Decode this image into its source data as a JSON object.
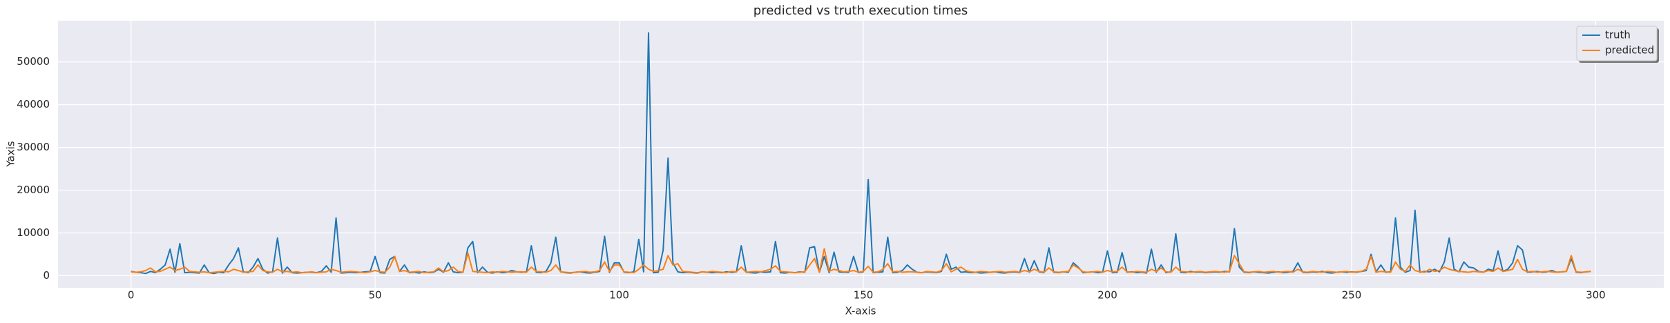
{
  "chart_data": {
    "type": "line",
    "title": "predicted vs truth execution times",
    "x_label": "X-axis",
    "y_label": "Yaxis",
    "grid": true,
    "legend": "upper right",
    "xlim": [
      -14.95,
      313.95
    ],
    "ylim": [
      -2840,
      59640
    ],
    "xticks": [
      0,
      50,
      100,
      150,
      200,
      250,
      300
    ],
    "yticks": [
      0,
      10000,
      20000,
      30000,
      40000,
      50000
    ],
    "x": [
      0,
      1,
      2,
      3,
      4,
      5,
      6,
      7,
      8,
      9,
      10,
      11,
      12,
      13,
      14,
      15,
      16,
      17,
      18,
      19,
      20,
      21,
      22,
      23,
      24,
      25,
      26,
      27,
      28,
      29,
      30,
      31,
      32,
      33,
      34,
      35,
      36,
      37,
      38,
      39,
      40,
      41,
      42,
      43,
      44,
      45,
      46,
      47,
      48,
      49,
      50,
      51,
      52,
      53,
      54,
      55,
      56,
      57,
      58,
      59,
      60,
      61,
      62,
      63,
      64,
      65,
      66,
      67,
      68,
      69,
      70,
      71,
      72,
      73,
      74,
      75,
      76,
      77,
      78,
      79,
      80,
      81,
      82,
      83,
      84,
      85,
      86,
      87,
      88,
      89,
      90,
      91,
      92,
      93,
      94,
      95,
      96,
      97,
      98,
      99,
      100,
      101,
      102,
      103,
      104,
      105,
      106,
      107,
      108,
      109,
      110,
      111,
      112,
      113,
      114,
      115,
      116,
      117,
      118,
      119,
      120,
      121,
      122,
      123,
      124,
      125,
      126,
      127,
      128,
      129,
      130,
      131,
      132,
      133,
      134,
      135,
      136,
      137,
      138,
      139,
      140,
      141,
      142,
      143,
      144,
      145,
      146,
      147,
      148,
      149,
      150,
      151,
      152,
      153,
      154,
      155,
      156,
      157,
      158,
      159,
      160,
      161,
      162,
      163,
      164,
      165,
      166,
      167,
      168,
      169,
      170,
      171,
      172,
      173,
      174,
      175,
      176,
      177,
      178,
      179,
      180,
      181,
      182,
      183,
      184,
      185,
      186,
      187,
      188,
      189,
      190,
      191,
      192,
      193,
      194,
      195,
      196,
      197,
      198,
      199,
      200,
      201,
      202,
      203,
      204,
      205,
      206,
      207,
      208,
      209,
      210,
      211,
      212,
      213,
      214,
      215,
      216,
      217,
      218,
      219,
      220,
      221,
      222,
      223,
      224,
      225,
      226,
      227,
      228,
      229,
      230,
      231,
      232,
      233,
      234,
      235,
      236,
      237,
      238,
      239,
      240,
      241,
      242,
      243,
      244,
      245,
      246,
      247,
      248,
      249,
      250,
      251,
      252,
      253,
      254,
      255,
      256,
      257,
      258,
      259,
      260,
      261,
      262,
      263,
      264,
      265,
      266,
      267,
      268,
      269,
      270,
      271,
      272,
      273,
      274,
      275,
      276,
      277,
      278,
      279,
      280,
      281,
      282,
      283,
      284,
      285,
      286,
      287,
      288,
      289,
      290,
      291,
      292,
      293,
      294,
      295,
      296,
      297,
      298,
      299
    ],
    "series": [
      {
        "name": "truth",
        "color": "#1f77b4",
        "values": [
          1000,
          800,
          700,
          500,
          1000,
          700,
          1500,
          2500,
          6200,
          800,
          7500,
          700,
          800,
          700,
          600,
          2500,
          700,
          500,
          800,
          700,
          2500,
          4000,
          6500,
          900,
          700,
          2000,
          4000,
          1500,
          600,
          900,
          8800,
          600,
          2000,
          700,
          600,
          700,
          800,
          800,
          700,
          1000,
          2300,
          800,
          13500,
          600,
          700,
          800,
          700,
          800,
          900,
          1000,
          4500,
          700,
          600,
          3800,
          4500,
          1000,
          2500,
          700,
          800,
          600,
          900,
          700,
          800,
          1500,
          800,
          3000,
          900,
          700,
          800,
          6500,
          8000,
          700,
          2000,
          800,
          600,
          900,
          700,
          800,
          1200,
          900,
          800,
          900,
          7000,
          800,
          700,
          1000,
          3000,
          9000,
          900,
          700,
          600,
          800,
          900,
          700,
          600,
          800,
          1000,
          9200,
          800,
          3000,
          3000,
          800,
          700,
          900,
          8500,
          900,
          56800,
          700,
          800,
          6000,
          27500,
          3000,
          900,
          700,
          800,
          700,
          600,
          900,
          800,
          700,
          800,
          700,
          900,
          800,
          900,
          7000,
          800,
          700,
          600,
          900,
          800,
          900,
          8000,
          700,
          600,
          800,
          700,
          900,
          800,
          6500,
          6800,
          800,
          4500,
          700,
          5500,
          900,
          800,
          800,
          4500,
          700,
          900,
          22500,
          700,
          800,
          900,
          9000,
          700,
          800,
          1200,
          2500,
          1500,
          800,
          700,
          900,
          800,
          700,
          1000,
          5000,
          1500,
          2000,
          800,
          900,
          700,
          800,
          600,
          700,
          800,
          900,
          700,
          600,
          800,
          900,
          700,
          4000,
          800,
          3500,
          900,
          700,
          6500,
          800,
          700,
          900,
          800,
          3000,
          2000,
          700,
          800,
          900,
          700,
          800,
          5800,
          700,
          800,
          5400,
          800,
          900,
          700,
          800,
          600,
          6200,
          800,
          2500,
          700,
          900,
          9800,
          800,
          700,
          1000,
          800,
          900,
          700,
          800,
          900,
          800,
          1000,
          900,
          11000,
          2000,
          800,
          700,
          900,
          800,
          700,
          600,
          800,
          900,
          700,
          800,
          1000,
          3000,
          800,
          700,
          900,
          800,
          1000,
          700,
          600,
          800,
          900,
          800,
          900,
          800,
          1000,
          1200,
          5000,
          900,
          2500,
          800,
          900,
          13500,
          2000,
          800,
          1200,
          15300,
          800,
          1000,
          900,
          1500,
          900,
          3200,
          8800,
          1500,
          900,
          3200,
          2000,
          1800,
          1000,
          800,
          1500,
          1200,
          5800,
          1000,
          1500,
          3000,
          7000,
          6000,
          800,
          900,
          1000,
          800,
          900,
          1200,
          800,
          900,
          1000,
          4000,
          800,
          700,
          900,
          1000
        ]
      },
      {
        "name": "predicted",
        "color": "#ff7f0e",
        "values": [
          900,
          800,
          900,
          1200,
          1800,
          900,
          1000,
          1500,
          2000,
          1200,
          1500,
          2000,
          1000,
          900,
          800,
          900,
          700,
          800,
          900,
          1000,
          900,
          1500,
          1200,
          800,
          900,
          1000,
          2500,
          1200,
          900,
          800,
          1500,
          900,
          1000,
          800,
          900,
          700,
          800,
          900,
          700,
          800,
          900,
          1500,
          1200,
          800,
          900,
          1000,
          900,
          800,
          700,
          900,
          1200,
          900,
          800,
          2000,
          4500,
          1000,
          1200,
          800,
          900,
          1000,
          700,
          800,
          900,
          1800,
          900,
          1200,
          2000,
          1000,
          800,
          5300,
          1000,
          900,
          800,
          700,
          900,
          800,
          1000,
          900,
          800,
          900,
          900,
          800,
          2000,
          1000,
          900,
          800,
          1200,
          2500,
          900,
          800,
          700,
          800,
          900,
          1000,
          800,
          900,
          1200,
          3200,
          1000,
          2500,
          2500,
          900,
          800,
          700,
          1500,
          2500,
          1500,
          1000,
          1200,
          1500,
          4700,
          2500,
          2800,
          1000,
          900,
          800,
          700,
          900,
          800,
          1000,
          900,
          800,
          700,
          1000,
          900,
          2000,
          800,
          900,
          1000,
          900,
          1200,
          1500,
          2300,
          1000,
          900,
          800,
          700,
          800,
          900,
          2500,
          4000,
          800,
          6300,
          1000,
          1500,
          1200,
          900,
          1000,
          1200,
          800,
          1000,
          2200,
          800,
          900,
          1500,
          2800,
          900,
          1000,
          800,
          900,
          900,
          800,
          700,
          1000,
          900,
          800,
          1200,
          2800,
          900,
          1500,
          2000,
          1200,
          900,
          800,
          1000,
          900,
          800,
          900,
          1000,
          800,
          900,
          1000,
          800,
          1200,
          900,
          1500,
          1000,
          800,
          1800,
          900,
          800,
          900,
          1000,
          2500,
          1800,
          900,
          800,
          900,
          1000,
          800,
          1200,
          900,
          1000,
          2000,
          900,
          800,
          1000,
          900,
          800,
          1500,
          1000,
          1800,
          900,
          800,
          2000,
          1000,
          900,
          800,
          900,
          1000,
          800,
          900,
          1000,
          900,
          800,
          1000,
          4700,
          2800,
          900,
          800,
          900,
          1000,
          800,
          900,
          1000,
          800,
          900,
          1000,
          800,
          1500,
          900,
          800,
          1000,
          900,
          800,
          1000,
          900,
          800,
          900,
          1000,
          800,
          900,
          1000,
          1500,
          4500,
          800,
          1000,
          900,
          800,
          3200,
          1500,
          1000,
          2500,
          1200,
          900,
          800,
          1500,
          1000,
          1200,
          2000,
          1500,
          1200,
          1000,
          900,
          800,
          1000,
          900,
          800,
          1200,
          1000,
          1800,
          1000,
          1200,
          1500,
          3800,
          1500,
          900,
          1000,
          800,
          900,
          1000,
          900,
          800,
          900,
          1000,
          4700,
          900,
          800,
          900,
          1000
        ]
      }
    ]
  }
}
